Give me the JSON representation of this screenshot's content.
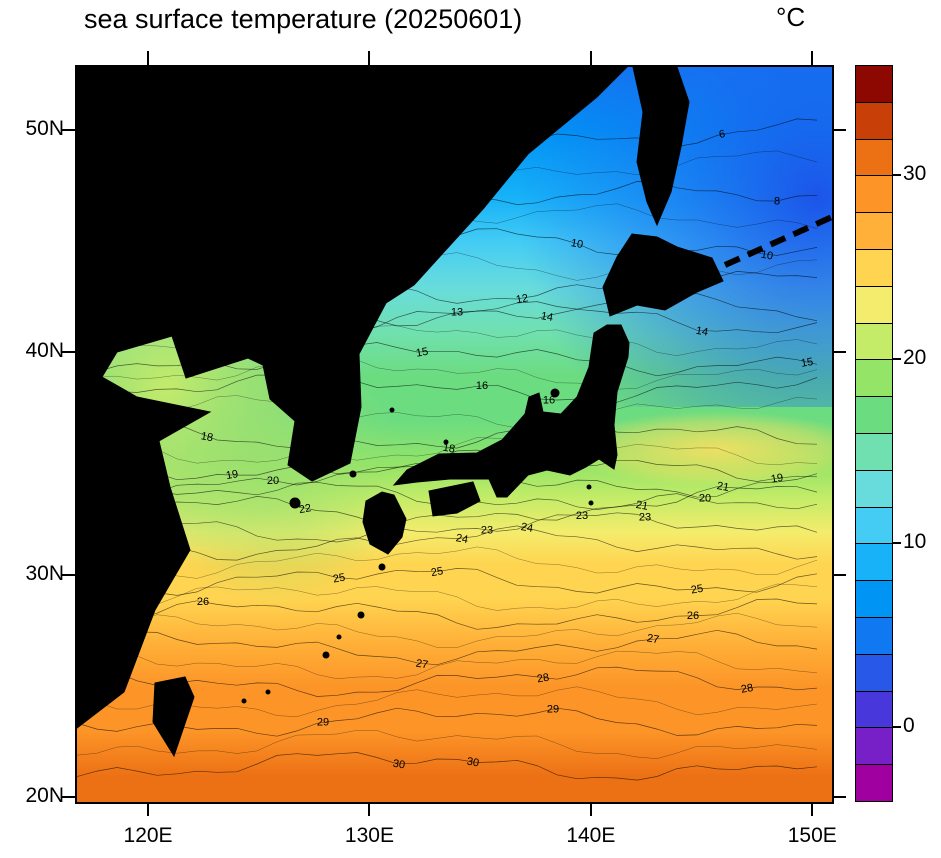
{
  "page": {
    "background": "#ffffff"
  },
  "header": {
    "title": "sea surface temperature (20250601)",
    "unit_label": "°C"
  },
  "chart_data": {
    "type": "heatmap",
    "title": "sea surface temperature (20250601)",
    "subtitle": "",
    "unit": "°C",
    "legend_position": "right",
    "grid": false,
    "x_axis": {
      "label": "",
      "tick_labels": [
        "120E",
        "130E",
        "140E",
        "150E"
      ],
      "ticks": [
        {
          "label": "120E",
          "lon": 120
        },
        {
          "label": "130E",
          "lon": 130
        },
        {
          "label": "140E",
          "lon": 140
        },
        {
          "label": "150E",
          "lon": 150
        }
      ],
      "range_lon": [
        116.7,
        150.8
      ]
    },
    "y_axis": {
      "label": "",
      "tick_labels": [
        "50N",
        "40N",
        "30N",
        "20N"
      ],
      "ticks": [
        {
          "label": "50N",
          "lat": 50
        },
        {
          "label": "40N",
          "lat": 40
        },
        {
          "label": "30N",
          "lat": 30
        },
        {
          "label": "20N",
          "lat": 20
        }
      ],
      "range_lat": [
        19.9,
        52.9
      ]
    },
    "colorbar": {
      "min": -4,
      "max": 36,
      "step": 2,
      "ticks": [
        {
          "value": 0,
          "label": "0"
        },
        {
          "value": 10,
          "label": "10"
        },
        {
          "value": 20,
          "label": "20"
        },
        {
          "value": 30,
          "label": "30"
        }
      ],
      "colors": [
        "#a000a0",
        "#7820c8",
        "#4838dc",
        "#2858e8",
        "#1078f0",
        "#0095f5",
        "#18b2f8",
        "#44ccf4",
        "#68dcdc",
        "#70e0b0",
        "#6cdc80",
        "#94e468",
        "#c4ec68",
        "#f4ec6c",
        "#ffd450",
        "#ffb038",
        "#fc9428",
        "#ec7014",
        "#c84008",
        "#8c0800"
      ]
    },
    "lat_sst_profile": [
      {
        "lat": 52.9,
        "sst": 4.5
      },
      {
        "lat": 50,
        "sst": 6
      },
      {
        "lat": 47,
        "sst": 8
      },
      {
        "lat": 45,
        "sst": 10
      },
      {
        "lat": 43,
        "sst": 12
      },
      {
        "lat": 41,
        "sst": 14
      },
      {
        "lat": 39,
        "sst": 16
      },
      {
        "lat": 37,
        "sst": 17.5
      },
      {
        "lat": 35,
        "sst": 19
      },
      {
        "lat": 33.5,
        "sst": 21
      },
      {
        "lat": 32,
        "sst": 23
      },
      {
        "lat": 30.5,
        "sst": 24.5
      },
      {
        "lat": 29,
        "sst": 25.5
      },
      {
        "lat": 27,
        "sst": 26.5
      },
      {
        "lat": 25,
        "sst": 28
      },
      {
        "lat": 23,
        "sst": 29
      },
      {
        "lat": 21,
        "sst": 30
      },
      {
        "lat": 19.9,
        "sst": 30.5
      }
    ],
    "contours": [
      {
        "value": 6,
        "lat": 50.0,
        "label_x": [
          645
        ]
      },
      {
        "value": 8,
        "lat": 47.0,
        "label_x": [
          700
        ]
      },
      {
        "value": 10,
        "lat": 45.0,
        "label_x": [
          500,
          690
        ]
      },
      {
        "value": 12,
        "lat": 43.0,
        "label_x": [
          445,
          540
        ]
      },
      {
        "value": 13,
        "lat": 42.0,
        "label_x": [
          380,
          600
        ]
      },
      {
        "value": 14,
        "lat": 41.5,
        "label_x": [
          470,
          625
        ]
      },
      {
        "value": 15,
        "lat": 39.8,
        "label_x": [
          345,
          730
        ]
      },
      {
        "value": 16,
        "lat": 38.5,
        "label_x": [
          405,
          472
        ]
      },
      {
        "value": 18,
        "lat": 36.3,
        "label_x": [
          130,
          372
        ]
      },
      {
        "value": 19,
        "lat": 35.0,
        "label_x": [
          155,
          700
        ]
      },
      {
        "value": 20,
        "lat": 34.3,
        "label_x": [
          196,
          628
        ]
      },
      {
        "value": 21,
        "lat": 33.6,
        "label_x": [
          565,
          646
        ]
      },
      {
        "value": 22,
        "lat": 33.0,
        "label_x": [
          228
        ]
      },
      {
        "value": 23,
        "lat": 32.2,
        "label_x": [
          410,
          505,
          568
        ]
      },
      {
        "value": 24,
        "lat": 31.5,
        "label_x": [
          385,
          450
        ]
      },
      {
        "value": 25,
        "lat": 29.8,
        "label_x": [
          262,
          360,
          620
        ]
      },
      {
        "value": 26,
        "lat": 28.3,
        "label_x": [
          126,
          616
        ]
      },
      {
        "value": 27,
        "lat": 26.8,
        "label_x": [
          345,
          576
        ]
      },
      {
        "value": 28,
        "lat": 25.3,
        "label_x": [
          466,
          670
        ]
      },
      {
        "value": 29,
        "lat": 23.5,
        "label_x": [
          246,
          476
        ]
      },
      {
        "value": 30,
        "lat": 21.5,
        "label_x": [
          322,
          396
        ]
      }
    ]
  }
}
